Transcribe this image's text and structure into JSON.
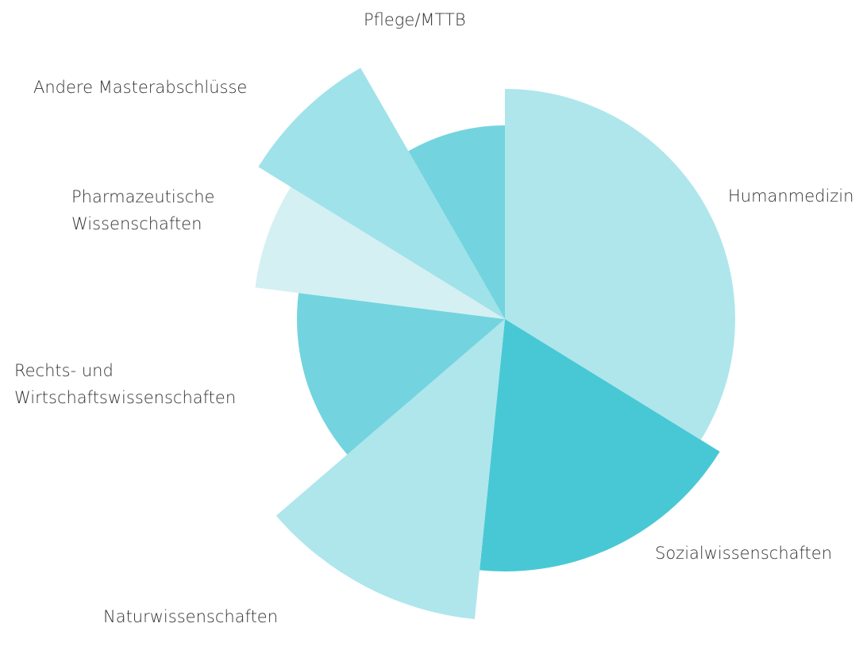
{
  "chart_data": {
    "type": "polar-area",
    "categories": [
      "Humanmedizin",
      "Sozialwissenschaften",
      "Naturwissenschaften",
      "Rechts- und\nWirtschaftswissenschaften",
      "Pharmazeutische\nWissenschaften",
      "Andere Masterabschlüsse",
      "Pflege/MTTB"
    ],
    "values": [
      33.8,
      17.8,
      12.1,
      13.3,
      6.8,
      7.9,
      8.3
    ],
    "sizes": [
      290,
      318,
      380,
      262,
      317,
      365,
      244
    ],
    "colors": [
      "#aee6ec",
      "#48c8d5",
      "#aee6ec",
      "#73d4df",
      "#d4f0f3",
      "#a0e2e9",
      "#73d4df"
    ]
  }
}
